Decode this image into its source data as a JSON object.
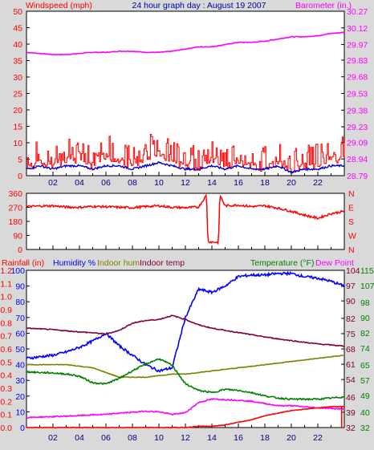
{
  "header": {
    "left": "Windspeed (mph)",
    "center": "24 hour graph day : August 19 2007",
    "right": "Barometer (in.)"
  },
  "x_ticks": [
    "02",
    "04",
    "06",
    "08",
    "10",
    "12",
    "14",
    "16",
    "18",
    "20",
    "22"
  ],
  "colors": {
    "windspeed": "#ff0000",
    "gust_avg": "#0000cc",
    "barometer": "#ff00ff",
    "direction": "#ff0000",
    "humidity": "#0000ff",
    "indoor_hum": "#808000",
    "indoor_temp": "#800040",
    "temperature": "#008000",
    "dew_point": "#ff00ff",
    "rainfall": "#ff0000",
    "background": "#d9d9d9",
    "plot": "#ffffff"
  },
  "chart_data": [
    {
      "type": "line",
      "name": "wind-barometer",
      "x": [
        0,
        1,
        2,
        3,
        4,
        5,
        6,
        7,
        8,
        9,
        10,
        11,
        12,
        13,
        14,
        15,
        16,
        17,
        18,
        19,
        20,
        21,
        22,
        23,
        24
      ],
      "series": [
        {
          "name": "Windspeed (mph)",
          "axis": "left",
          "values": [
            3,
            5,
            4,
            6,
            5,
            4,
            7,
            5,
            4,
            6,
            8,
            5,
            4,
            3,
            6,
            4,
            5,
            4,
            3,
            5,
            2,
            4,
            4,
            5,
            6
          ]
        },
        {
          "name": "Barometer (in.)",
          "axis": "right",
          "values": [
            29.9,
            29.89,
            29.88,
            29.88,
            29.89,
            29.9,
            29.9,
            29.91,
            29.91,
            29.9,
            29.9,
            29.91,
            29.93,
            29.95,
            29.95,
            29.97,
            29.99,
            29.99,
            30.0,
            30.02,
            30.04,
            30.04,
            30.05,
            30.07,
            30.08
          ]
        },
        {
          "name": "",
          "axis": "left",
          "values": [
            2,
            3,
            2,
            3,
            3,
            2,
            3,
            3,
            2,
            3,
            4,
            3,
            2,
            2,
            3,
            2,
            3,
            2,
            2,
            3,
            1,
            2,
            2,
            3,
            3
          ]
        }
      ],
      "left_axis": {
        "ticks": [
          0,
          5,
          10,
          15,
          20,
          25,
          30,
          35,
          40,
          45,
          50
        ],
        "ylim": [
          0,
          50
        ]
      },
      "right_axis": {
        "ticks": [
          "28.79",
          "28.94",
          "29.09",
          "29.23",
          "29.38",
          "29.53",
          "29.68",
          "29.83",
          "29.97",
          "30.12",
          "30.27"
        ],
        "ylim": [
          28.79,
          30.27
        ]
      }
    },
    {
      "type": "line",
      "name": "wind-direction",
      "x": [
        0,
        1,
        2,
        3,
        4,
        5,
        6,
        7,
        8,
        9,
        10,
        11,
        12,
        13,
        13.6,
        13.7,
        14.5,
        14.6,
        15,
        16,
        17,
        18,
        19,
        20,
        21,
        22,
        23,
        24
      ],
      "series": [
        {
          "name": "Direction",
          "values": [
            275,
            278,
            280,
            272,
            270,
            276,
            274,
            270,
            268,
            275,
            280,
            270,
            268,
            272,
            350,
            50,
            45,
            350,
            280,
            285,
            275,
            280,
            265,
            245,
            220,
            200,
            230,
            245
          ]
        }
      ],
      "left_axis": {
        "ticks": [
          0,
          90,
          180,
          270,
          360
        ],
        "ylim": [
          0,
          360
        ]
      },
      "right_axis": {
        "ticks": [
          "N",
          "E",
          "S",
          "W",
          "N"
        ]
      }
    },
    {
      "type": "line",
      "name": "rain-humidity-temperature",
      "legend": [
        "Rainfall (in)",
        "Humidity %",
        "Indoor hum",
        "Indoor temp",
        "Temperature (°F)",
        "Dew Point"
      ],
      "x": [
        0,
        1,
        2,
        3,
        4,
        5,
        6,
        7,
        8,
        9,
        10,
        11,
        12,
        13,
        14,
        15,
        16,
        17,
        18,
        19,
        20,
        21,
        22,
        23,
        24
      ],
      "series": [
        {
          "name": "Humidity %",
          "axis": "humidity",
          "values": [
            44,
            45,
            46,
            48,
            51,
            55,
            60,
            52,
            46,
            40,
            36,
            38,
            70,
            88,
            86,
            90,
            96,
            97,
            97,
            98,
            98,
            96,
            95,
            93,
            90
          ]
        },
        {
          "name": "Indoor hum",
          "axis": "humidity",
          "values": [
            40,
            40,
            40,
            40,
            39,
            38,
            35,
            32,
            32,
            32,
            33,
            34,
            34,
            35,
            36,
            37,
            38,
            39,
            40,
            41,
            42,
            43,
            44,
            45,
            46
          ]
        },
        {
          "name": "Indoor temp",
          "axis": "temperature",
          "values": [
            77.5,
            77.2,
            76.8,
            76.3,
            75.8,
            75.4,
            74.8,
            76.5,
            79.8,
            81.0,
            81.5,
            83.3,
            81.5,
            79.0,
            77.5,
            76.5,
            75.5,
            74.5,
            73.5,
            72.6,
            71.8,
            71.0,
            70.3,
            69.8,
            69.3
          ]
        },
        {
          "name": "Temperature (°F)",
          "axis": "temperature",
          "values": [
            57.5,
            57.2,
            57.0,
            56.5,
            55.5,
            52.5,
            52.0,
            54.5,
            58.0,
            61.0,
            63.5,
            60.5,
            52.0,
            49.0,
            48.0,
            49.5,
            49.0,
            48.0,
            46.5,
            45.5,
            45.0,
            45.0,
            45.0,
            45.5,
            46.0
          ]
        },
        {
          "name": "Dew Point",
          "axis": "temperature",
          "values": [
            36.5,
            36.8,
            37.0,
            37.2,
            37.5,
            37.8,
            38.0,
            38.6,
            39.0,
            39.5,
            39.2,
            38.0,
            38.8,
            43.5,
            45.0,
            44.8,
            44.5,
            44.0,
            43.0,
            42.0,
            42.0,
            41.5,
            41.0,
            40.8,
            40.5
          ]
        },
        {
          "name": "Rainfall (in)",
          "axis": "rainfall",
          "values": [
            0.0,
            0.0,
            0.0,
            0.0,
            0.0,
            0.0,
            0.0,
            0.0,
            0.0,
            0.0,
            0.0,
            0.0,
            0.0,
            0.01,
            0.01,
            0.02,
            0.04,
            0.06,
            0.09,
            0.11,
            0.13,
            0.14,
            0.15,
            0.16,
            0.16
          ]
        }
      ],
      "rainfall_axis": {
        "ticks": [
          "0.0",
          "0.1",
          "0.2",
          "0.3",
          "0.4",
          "0.5",
          "0.6",
          "0.7",
          "0.8",
          "0.9",
          "1.0",
          "1.1",
          "1.2"
        ],
        "ylim": [
          0,
          1.2
        ]
      },
      "humidity_axis": {
        "ticks": [
          0,
          10,
          20,
          30,
          40,
          50,
          60,
          70,
          80,
          90,
          100
        ],
        "ylim": [
          0,
          100
        ]
      },
      "temperature_axis_f1": {
        "ticks": [
          32,
          39,
          46,
          54,
          61,
          68,
          75,
          82,
          90,
          97,
          104
        ],
        "ylim": [
          32,
          104
        ]
      },
      "temperature_axis_f2": {
        "ticks": [
          32,
          40,
          49,
          57,
          65,
          74,
          82,
          90,
          98,
          107,
          115
        ],
        "ylim": [
          32,
          115
        ]
      }
    }
  ]
}
